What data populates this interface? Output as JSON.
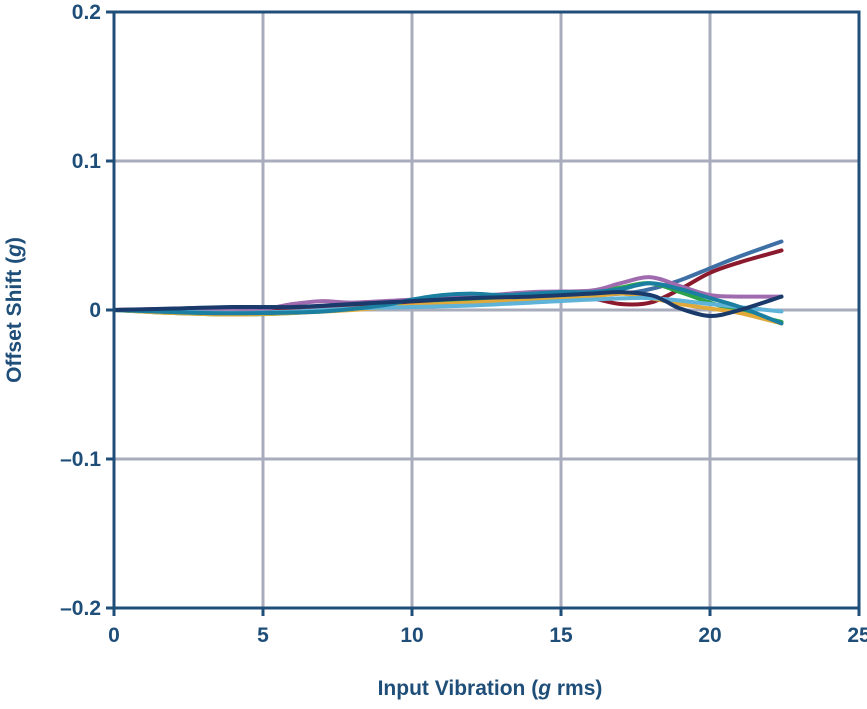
{
  "chart_data": {
    "type": "line",
    "xlabel_prefix": "Input Vibration (",
    "xlabel_var": "g",
    "xlabel_suffix": " rms)",
    "ylabel_prefix": "Offset Shift (",
    "ylabel_var": "g",
    "ylabel_suffix": ")",
    "xlim": [
      0,
      25
    ],
    "ylim": [
      -0.2,
      0.2
    ],
    "xticks": [
      0,
      5,
      10,
      15,
      20,
      25
    ],
    "xtick_labels": [
      "0",
      "5",
      "10",
      "15",
      "20",
      "25"
    ],
    "yticks": [
      0.2,
      0.1,
      0,
      -0.1,
      -0.2
    ],
    "ytick_labels": [
      "0.2",
      "0.1",
      "0",
      "–0.1",
      "–0.2"
    ],
    "grid": true,
    "colors": {
      "axis": "#1f4e79",
      "grid": "#a9acbd"
    },
    "series": [
      {
        "color": "#3e6fa5",
        "x": [
          0,
          3,
          5,
          7,
          9,
          11,
          13,
          15,
          17,
          18,
          19,
          20,
          21,
          22.4
        ],
        "y": [
          0,
          0.001,
          0.002,
          0.002,
          0.004,
          0.006,
          0.008,
          0.009,
          0.011,
          0.014,
          0.02,
          0.028,
          0.036,
          0.046
        ]
      },
      {
        "color": "#8b1a2e",
        "x": [
          0,
          3,
          5,
          7,
          9,
          11,
          13,
          15,
          16,
          17,
          18,
          19,
          20,
          21,
          22.4
        ],
        "y": [
          0,
          0.001,
          0.001,
          0.002,
          0.004,
          0.006,
          0.008,
          0.009,
          0.008,
          0.004,
          0.005,
          0.014,
          0.025,
          0.032,
          0.04
        ]
      },
      {
        "color": "#a06aaf",
        "x": [
          0,
          3,
          5,
          6,
          7,
          8,
          10,
          12,
          14,
          16,
          17,
          18,
          19,
          20,
          21,
          22.4
        ],
        "y": [
          0,
          0.001,
          0.001,
          0.004,
          0.006,
          0.005,
          0.007,
          0.009,
          0.012,
          0.013,
          0.018,
          0.022,
          0.016,
          0.01,
          0.009,
          0.009
        ]
      },
      {
        "color": "#2aa34a",
        "x": [
          0,
          2,
          4,
          6,
          8,
          10,
          12,
          14,
          16,
          17,
          18,
          19,
          20,
          21,
          22.4
        ],
        "y": [
          0,
          -0.002,
          -0.003,
          -0.002,
          0.001,
          0.003,
          0.006,
          0.009,
          0.011,
          0.015,
          0.018,
          0.012,
          0.005,
          -0.001,
          -0.008
        ]
      },
      {
        "color": "#e1a93a",
        "x": [
          0,
          2,
          4,
          6,
          8,
          10,
          12,
          14,
          16,
          17,
          18,
          19,
          20,
          21,
          22.4
        ],
        "y": [
          0,
          -0.002,
          -0.003,
          -0.002,
          0,
          0.003,
          0.005,
          0.007,
          0.009,
          0.011,
          0.008,
          0.004,
          0.001,
          -0.002,
          -0.009
        ]
      },
      {
        "color": "#5fb2d8",
        "x": [
          0,
          2,
          4,
          6,
          8,
          10,
          12,
          14,
          16,
          18,
          20,
          22.4
        ],
        "y": [
          0,
          -0.001,
          -0.002,
          -0.001,
          0.001,
          0.002,
          0.003,
          0.005,
          0.007,
          0.008,
          0.004,
          -0.001
        ]
      },
      {
        "color": "#1a7fa0",
        "x": [
          0,
          3,
          5,
          7,
          9,
          10,
          11,
          12,
          13,
          14,
          15,
          16,
          17,
          18,
          19,
          20,
          21,
          22.4
        ],
        "y": [
          0,
          -0.002,
          -0.002,
          -0.001,
          0.003,
          0.007,
          0.01,
          0.011,
          0.01,
          0.011,
          0.012,
          0.012,
          0.014,
          0.018,
          0.014,
          0.008,
          0.002,
          -0.009
        ]
      },
      {
        "color": "#193a6b",
        "x": [
          0,
          2,
          4,
          6,
          8,
          10,
          12,
          14,
          16,
          17,
          18,
          18.5,
          19,
          20,
          21,
          22.4
        ],
        "y": [
          0,
          0.001,
          0.002,
          0.002,
          0.004,
          0.006,
          0.008,
          0.009,
          0.011,
          0.012,
          0.01,
          0.006,
          0.001,
          -0.004,
          0.0,
          0.009
        ]
      }
    ]
  }
}
